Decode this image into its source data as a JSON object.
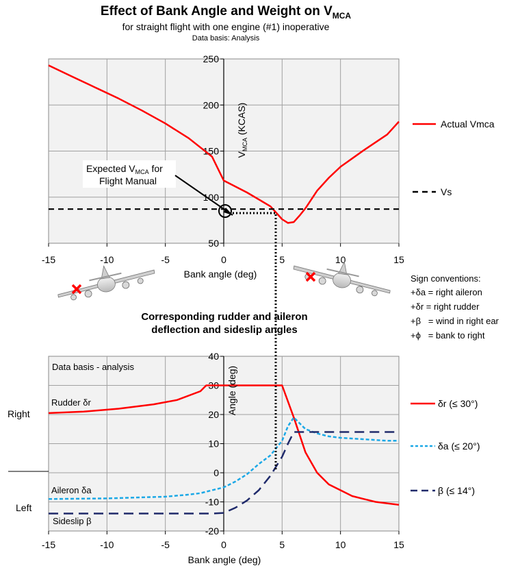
{
  "title_main": "Effect of Bank Angle and Weight on V",
  "title_main_sub": "MCA",
  "subtitle": "for straight flight with one engine (#1)  inoperative",
  "data_basis_top": "Data basis: Analysis",
  "top_chart": {
    "xlabel": "Bank angle (deg)",
    "ylabel_main": "V",
    "ylabel_sub": "MCA",
    "ylabel_unit": " (KCAS)",
    "xlim": [
      -15,
      15
    ],
    "ylim": [
      50,
      250
    ],
    "xticks": [
      "-15",
      "-10",
      "-5",
      "0",
      "5",
      "10",
      "15"
    ],
    "yticks": [
      "50",
      "100",
      "150",
      "200",
      "250"
    ],
    "annotation_line1_main": "Expected V",
    "annotation_line1_sub": "MCA",
    "annotation_line1_end": " for",
    "annotation_line2": "Flight Manual",
    "legend_actual": "Actual Vmca",
    "legend_vs": "Vs",
    "actual_color": "#ff0000"
  },
  "sign_conventions": {
    "title": "Sign conventions:",
    "items": [
      "+δa = right aileron",
      "+δr = right rudder",
      "+β   = wind in right ear",
      "+ϕ   = bank to right"
    ]
  },
  "bottom_title_line1": "Corresponding rudder and aileron",
  "bottom_title_line2": "deflection and sideslip angles",
  "bottom_chart": {
    "data_basis": "Data basis - analysis",
    "xlabel": "Bank angle (deg)",
    "ylabel": "Angle (deg)",
    "xlim": [
      -15,
      15
    ],
    "ylim": [
      -20,
      40
    ],
    "xticks": [
      "-15",
      "-10",
      "-5",
      "0",
      "5",
      "10",
      "15"
    ],
    "yticks": [
      "-20",
      "-10",
      "0",
      "10",
      "20",
      "30",
      "40"
    ],
    "label_rudder": "Rudder δr",
    "label_aileron": "Aileron  δa",
    "label_sideslip": "Sideslip β",
    "label_right": "Right",
    "label_left": "Left",
    "legend_rudder": "δr  (≤ 30°)",
    "legend_aileron": "δa (≤ 20°)",
    "legend_beta": "β (≤ 14°)",
    "colors": {
      "rudder": "#ff0000",
      "aileron": "#1ba8e6",
      "beta": "#1f2a6b"
    }
  },
  "chart_data": [
    {
      "type": "line",
      "title": "Effect of Bank Angle and Weight on VMCA",
      "xlabel": "Bank angle (deg)",
      "ylabel": "VMCA (KCAS)",
      "xlim": [
        -15,
        15
      ],
      "ylim": [
        50,
        250
      ],
      "grid": true,
      "legend": "right",
      "series": [
        {
          "name": "Actual Vmca",
          "x": [
            -15,
            -13,
            -11,
            -9,
            -7,
            -5,
            -3,
            -1,
            0,
            2,
            4,
            5,
            5.5,
            6,
            6.5,
            7,
            8,
            9,
            10,
            12,
            14,
            15
          ],
          "values": [
            243,
            231,
            219,
            207,
            194,
            180,
            164,
            144,
            118,
            105,
            90,
            76,
            72,
            73,
            80,
            88,
            107,
            121,
            133,
            151,
            168,
            182
          ]
        },
        {
          "name": "Vs",
          "x": [
            -15,
            15
          ],
          "values": [
            87,
            87
          ]
        }
      ]
    },
    {
      "type": "line",
      "title": "Corresponding rudder and aileron deflection and sideslip angles",
      "xlabel": "Bank angle (deg)",
      "ylabel": "Angle (deg)",
      "xlim": [
        -15,
        15
      ],
      "ylim": [
        -20,
        40
      ],
      "grid": true,
      "legend": "right",
      "series": [
        {
          "name": "δr  (≤ 30°)",
          "x": [
            -15,
            -12,
            -9,
            -6,
            -4,
            -2,
            -1.5,
            -1,
            0,
            2,
            4,
            5,
            6,
            7,
            8,
            9,
            10,
            11,
            12,
            13,
            14,
            15
          ],
          "values": [
            20.5,
            21,
            22,
            23.5,
            25,
            28,
            30,
            30,
            30,
            30,
            30,
            30,
            19,
            7,
            0,
            -4,
            -6,
            -8,
            -9,
            -10,
            -10.5,
            -11
          ]
        },
        {
          "name": "δa (≤ 20°)",
          "x": [
            -15,
            -10,
            -5,
            -3,
            -2,
            -1,
            0,
            1,
            2,
            3,
            4,
            5,
            5.5,
            6,
            6.5,
            7,
            8,
            9,
            10,
            12,
            14,
            15
          ],
          "values": [
            -9,
            -8.8,
            -8.2,
            -7.5,
            -7,
            -6,
            -5,
            -3,
            -0.5,
            3,
            6,
            11,
            16,
            19,
            17,
            15,
            13.5,
            12.5,
            12,
            11.5,
            11,
            11
          ]
        },
        {
          "name": "β (≤ 14°)",
          "x": [
            -15,
            -10,
            -5,
            -2,
            -1,
            0,
            1,
            2,
            3,
            4,
            5,
            5.5,
            6,
            7,
            10,
            15
          ],
          "values": [
            -14,
            -14,
            -14,
            -14,
            -14,
            -13.8,
            -12,
            -9.5,
            -6,
            -1,
            5.5,
            10,
            14,
            14,
            14,
            14
          ]
        }
      ]
    }
  ]
}
